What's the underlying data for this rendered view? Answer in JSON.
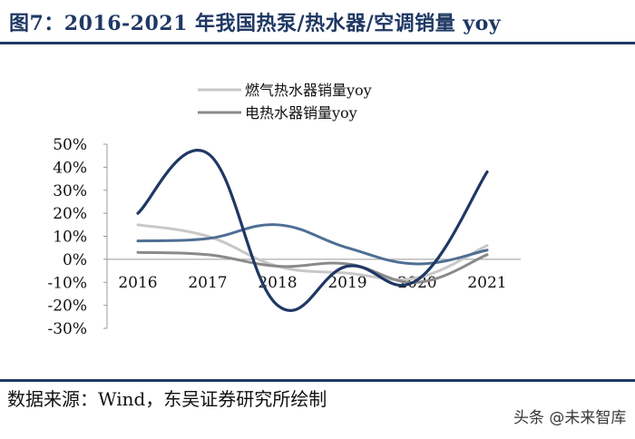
{
  "title": "图7：2016-2021 年我国热泵/热水器/空调销量 yoy",
  "source": "数据来源：Wind，东吴证券研究所绘制",
  "watermark": "头条 @未来智库",
  "chart_data": {
    "type": "line",
    "categories": [
      "2016",
      "2017",
      "2018",
      "2019",
      "2020",
      "2021"
    ],
    "ylim": [
      -30,
      50
    ],
    "yticks": [
      "50%",
      "40%",
      "30%",
      "20%",
      "10%",
      "0%",
      "-10%",
      "-20%",
      "-30%"
    ],
    "legend_position": "top-center",
    "grid": false,
    "series": [
      {
        "name": "燃气热水器销量yoy",
        "color": "#c8c8c8",
        "values": [
          15,
          10,
          -3,
          -6,
          -8,
          6
        ]
      },
      {
        "name": "电热水器销量yoy",
        "color": "#8a8a8a",
        "values": [
          3,
          2,
          -3,
          -2,
          -10,
          2
        ]
      },
      {
        "name": "",
        "color": "#4f6f94",
        "values": [
          8,
          9,
          15,
          5,
          -2,
          4
        ]
      },
      {
        "name": "",
        "color": "#1f3864",
        "values": [
          20,
          46,
          -20,
          -3,
          -9,
          38
        ]
      }
    ]
  }
}
